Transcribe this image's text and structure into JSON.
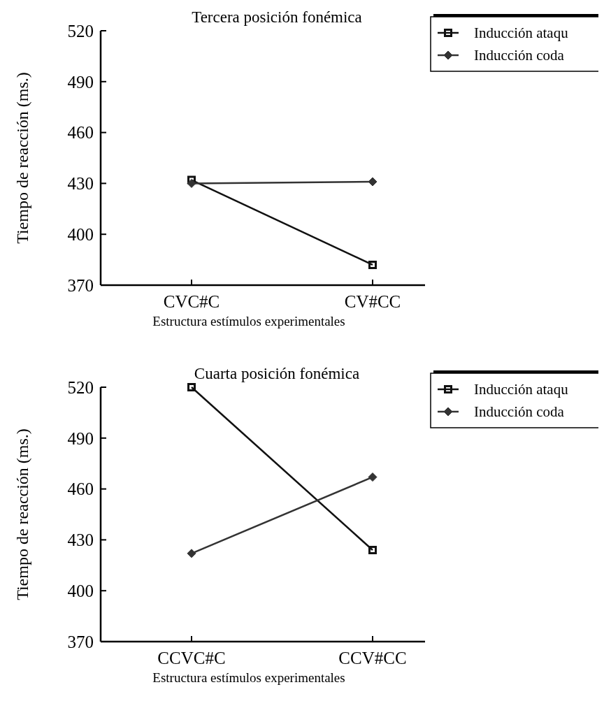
{
  "chart_data": [
    {
      "type": "line",
      "title": "Tercera posición fonémica",
      "xlabel": "Estructura estímulos experimentales",
      "ylabel": "Tiempo de reacción (ms.)",
      "categories": [
        "CVC#C",
        "CV#CC"
      ],
      "series": [
        {
          "name": "Inducción ataqu",
          "color": "#111111",
          "marker": "square",
          "values": [
            432,
            382
          ]
        },
        {
          "name": "Inducción coda",
          "color": "#333333",
          "marker": "diamond",
          "values": [
            430,
            431
          ]
        }
      ],
      "ylim": [
        370,
        520
      ],
      "yticks": [
        370,
        400,
        430,
        460,
        490,
        520
      ],
      "legend": "top right",
      "grid": false
    },
    {
      "type": "line",
      "title": "Cuarta posición fonémica",
      "xlabel": "Estructura estímulos experimentales",
      "ylabel": "Tiempo de reacción (ms.)",
      "categories": [
        "CCVC#C",
        "CCV#CC"
      ],
      "series": [
        {
          "name": "Inducción ataqu",
          "color": "#111111",
          "marker": "square",
          "values": [
            520,
            424
          ]
        },
        {
          "name": "Inducción coda",
          "color": "#333333",
          "marker": "diamond",
          "values": [
            422,
            467
          ]
        }
      ],
      "ylim": [
        370,
        520
      ],
      "yticks": [
        370,
        400,
        430,
        460,
        490,
        520
      ],
      "legend": "top right",
      "grid": false
    }
  ]
}
